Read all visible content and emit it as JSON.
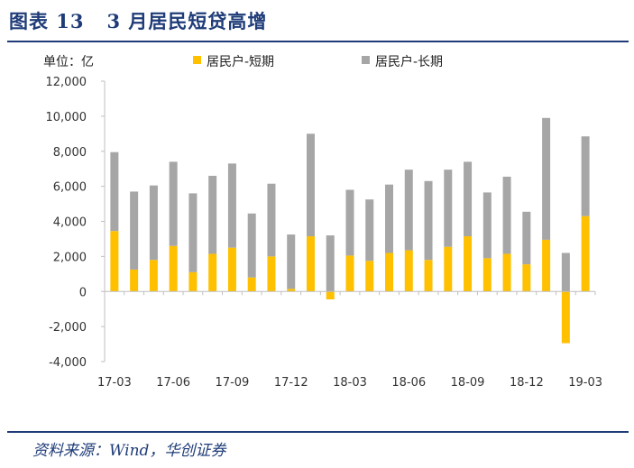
{
  "header": {
    "figure_label": "图表 13",
    "title": "3 月居民短贷高增"
  },
  "footer": {
    "source": "资料来源：Wind，华创证券"
  },
  "chart_data": {
    "type": "bar",
    "stacked": true,
    "unit_label": "单位：亿",
    "categories": [
      "17-03",
      "17-04",
      "17-05",
      "17-06",
      "17-07",
      "17-08",
      "17-09",
      "17-10",
      "17-11",
      "17-12",
      "18-01",
      "18-02",
      "18-03",
      "18-04",
      "18-05",
      "18-06",
      "18-07",
      "18-08",
      "18-09",
      "18-10",
      "18-11",
      "18-12",
      "19-01",
      "19-02",
      "19-03"
    ],
    "x_tick_labels": [
      "17-03",
      "17-06",
      "17-09",
      "17-12",
      "18-03",
      "18-06",
      "18-09",
      "18-12",
      "19-03"
    ],
    "series": [
      {
        "name": "居民户-短期",
        "color": "#ffc000",
        "values": [
          3450,
          1250,
          1800,
          2600,
          1100,
          2150,
          2500,
          800,
          2000,
          150,
          3150,
          -450,
          2050,
          1750,
          2200,
          2350,
          1800,
          2550,
          3150,
          1900,
          2150,
          1550,
          2950,
          -2950,
          4300
        ]
      },
      {
        "name": "居民户-长期",
        "color": "#a6a6a6",
        "values": [
          4500,
          4450,
          4250,
          4800,
          4500,
          4450,
          4800,
          3650,
          4150,
          3100,
          5850,
          3200,
          3750,
          3500,
          3900,
          4600,
          4500,
          4400,
          4250,
          3750,
          4400,
          3000,
          6950,
          2200,
          4550
        ]
      }
    ],
    "y_ticks": [
      "12,000",
      "10,000",
      "8,000",
      "6,000",
      "4,000",
      "2,000",
      "0",
      "-2,000",
      "-4,000"
    ],
    "ylim": [
      -4000,
      12000
    ],
    "legend_position": "top"
  }
}
